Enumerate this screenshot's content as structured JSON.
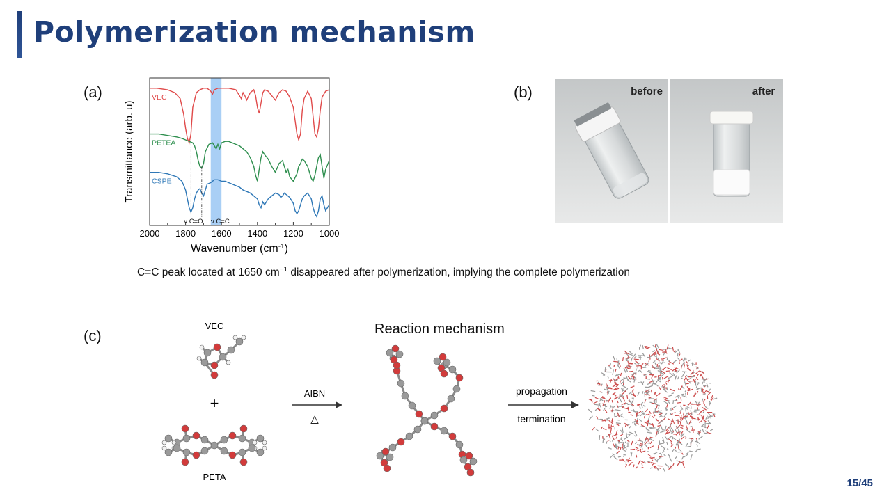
{
  "header": {
    "title": "Polymerization mechanism"
  },
  "panels": {
    "a": "(a)",
    "b": "(b)",
    "c": "(c)"
  },
  "chart_data": {
    "type": "line",
    "xlabel": "Wavenumber (cm⁻¹)",
    "ylabel": "Transmittance (arb. u)",
    "xlim": [
      2000,
      1000
    ],
    "x_ticks": [
      "2000",
      "1800",
      "1600",
      "1400",
      "1200",
      "1000"
    ],
    "series": [
      {
        "name": "VEC",
        "color": "#e04a4a",
        "x": [
          2000,
          1960,
          1900,
          1860,
          1830,
          1810,
          1800,
          1790,
          1780,
          1770,
          1760,
          1740,
          1720,
          1700,
          1680,
          1660,
          1650,
          1640,
          1620,
          1600,
          1560,
          1520,
          1500,
          1490,
          1480,
          1470,
          1460,
          1440,
          1420,
          1410,
          1400,
          1390,
          1380,
          1370,
          1360,
          1340,
          1320,
          1300,
          1280,
          1260,
          1240,
          1220,
          1200,
          1180,
          1170,
          1160,
          1150,
          1140,
          1120,
          1100,
          1090,
          1080,
          1070,
          1060,
          1050,
          1040,
          1020,
          1000
        ],
        "y": [
          0.93,
          0.93,
          0.92,
          0.9,
          0.86,
          0.75,
          0.66,
          0.59,
          0.56,
          0.62,
          0.8,
          0.9,
          0.92,
          0.93,
          0.93,
          0.91,
          0.89,
          0.92,
          0.93,
          0.93,
          0.93,
          0.92,
          0.88,
          0.86,
          0.9,
          0.88,
          0.85,
          0.9,
          0.92,
          0.88,
          0.8,
          0.76,
          0.83,
          0.9,
          0.92,
          0.91,
          0.88,
          0.85,
          0.9,
          0.92,
          0.91,
          0.87,
          0.8,
          0.62,
          0.58,
          0.62,
          0.78,
          0.86,
          0.91,
          0.86,
          0.74,
          0.62,
          0.6,
          0.66,
          0.78,
          0.87,
          0.91,
          0.92
        ]
      },
      {
        "name": "PETEA",
        "color": "#2f8f4f",
        "x": [
          2000,
          1950,
          1900,
          1850,
          1820,
          1800,
          1780,
          1760,
          1750,
          1740,
          1730,
          1720,
          1710,
          1700,
          1690,
          1670,
          1650,
          1640,
          1630,
          1620,
          1610,
          1600,
          1580,
          1560,
          1540,
          1520,
          1500,
          1480,
          1460,
          1440,
          1420,
          1410,
          1400,
          1390,
          1380,
          1370,
          1360,
          1340,
          1320,
          1300,
          1280,
          1260,
          1250,
          1240,
          1230,
          1220,
          1200,
          1180,
          1170,
          1160,
          1150,
          1140,
          1120,
          1110,
          1100,
          1090,
          1080,
          1070,
          1060,
          1050,
          1040,
          1030,
          1020,
          1000
        ],
        "y": [
          0.62,
          0.62,
          0.61,
          0.6,
          0.59,
          0.58,
          0.57,
          0.56,
          0.54,
          0.5,
          0.44,
          0.4,
          0.39,
          0.42,
          0.5,
          0.55,
          0.56,
          0.54,
          0.52,
          0.55,
          0.52,
          0.56,
          0.57,
          0.57,
          0.56,
          0.55,
          0.54,
          0.52,
          0.5,
          0.46,
          0.4,
          0.34,
          0.3,
          0.38,
          0.46,
          0.5,
          0.48,
          0.45,
          0.4,
          0.36,
          0.42,
          0.44,
          0.4,
          0.36,
          0.38,
          0.33,
          0.3,
          0.35,
          0.4,
          0.42,
          0.45,
          0.44,
          0.4,
          0.36,
          0.32,
          0.3,
          0.34,
          0.4,
          0.46,
          0.48,
          0.4,
          0.32,
          0.38,
          0.44
        ]
      },
      {
        "name": "CSPE",
        "color": "#2f78b7",
        "x": [
          2000,
          1950,
          1900,
          1850,
          1820,
          1800,
          1790,
          1780,
          1770,
          1760,
          1750,
          1740,
          1730,
          1720,
          1710,
          1700,
          1690,
          1680,
          1660,
          1650,
          1640,
          1620,
          1600,
          1580,
          1560,
          1540,
          1520,
          1500,
          1480,
          1460,
          1440,
          1420,
          1400,
          1390,
          1380,
          1370,
          1360,
          1340,
          1320,
          1300,
          1280,
          1270,
          1260,
          1250,
          1240,
          1220,
          1200,
          1190,
          1180,
          1170,
          1160,
          1150,
          1140,
          1120,
          1100,
          1090,
          1080,
          1070,
          1060,
          1050,
          1040,
          1030,
          1020,
          1000
        ],
        "y": [
          0.36,
          0.36,
          0.35,
          0.33,
          0.3,
          0.24,
          0.18,
          0.12,
          0.09,
          0.12,
          0.18,
          0.22,
          0.24,
          0.25,
          0.22,
          0.2,
          0.24,
          0.28,
          0.29,
          0.3,
          0.31,
          0.31,
          0.3,
          0.3,
          0.29,
          0.28,
          0.27,
          0.26,
          0.24,
          0.23,
          0.22,
          0.2,
          0.18,
          0.14,
          0.12,
          0.16,
          0.14,
          0.18,
          0.2,
          0.22,
          0.21,
          0.19,
          0.2,
          0.22,
          0.21,
          0.19,
          0.15,
          0.1,
          0.08,
          0.1,
          0.14,
          0.18,
          0.2,
          0.22,
          0.18,
          0.12,
          0.08,
          0.06,
          0.1,
          0.18,
          0.2,
          0.14,
          0.1,
          0.14
        ]
      }
    ],
    "annotations": [
      {
        "text": "ν C=O",
        "x": 1770
      },
      {
        "text": "ν C=C",
        "x": 1620
      }
    ],
    "highlight_band": {
      "x": [
        1660,
        1600
      ],
      "color": "#a9cff5"
    },
    "grid": false,
    "legend": "inline-left"
  },
  "photos": {
    "before_label": "before",
    "after_label": "after"
  },
  "caption": {
    "pre": "C=C peak located at 1650 cm",
    "sup": "−1",
    "post": " disappeared after polymerization, implying the complete polymerization"
  },
  "reaction": {
    "title": "Reaction mechanism",
    "reactant_top": "VEC",
    "plus": "+",
    "reactant_bottom": "PETA",
    "arrow1_top": "AIBN",
    "arrow1_bottom": "△",
    "arrow2_top": "propagation",
    "arrow2_bottom": "termination"
  },
  "footer": {
    "page": "15/45"
  }
}
